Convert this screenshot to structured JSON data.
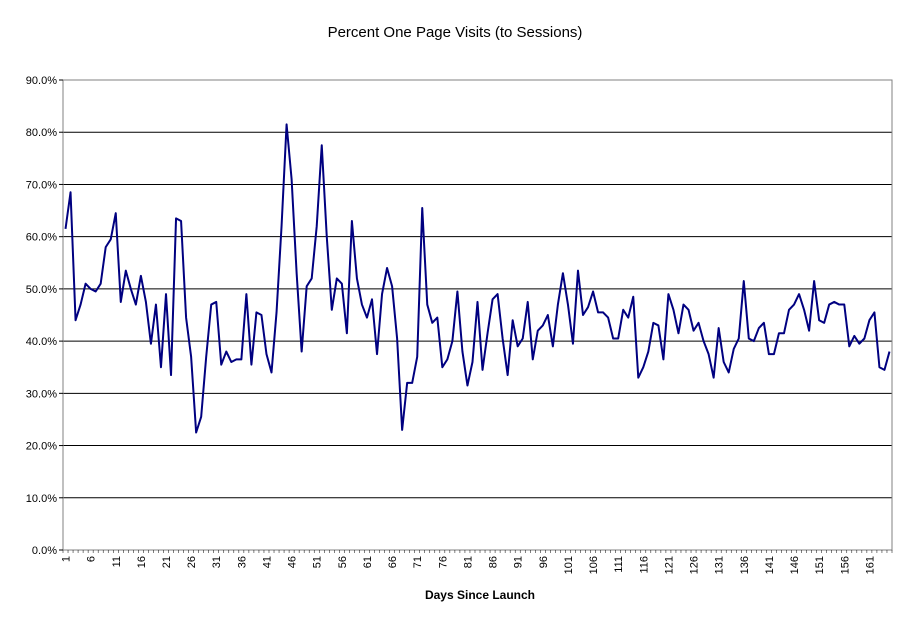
{
  "chart_data": {
    "type": "line",
    "title": "Percent One Page Visits (to Sessions)",
    "xlabel": "Days Since Launch",
    "ylabel": "",
    "ylim": [
      0,
      90
    ],
    "y_ticks": [
      "0.0%",
      "10.0%",
      "20.0%",
      "30.0%",
      "40.0%",
      "50.0%",
      "60.0%",
      "70.0%",
      "80.0%",
      "90.0%"
    ],
    "x_tick_labels": [
      "1",
      "6",
      "11",
      "16",
      "21",
      "26",
      "31",
      "36",
      "41",
      "46",
      "51",
      "56",
      "61",
      "66",
      "71",
      "76",
      "81",
      "86",
      "91",
      "96",
      "101",
      "106",
      "111",
      "116",
      "121",
      "126",
      "131",
      "136",
      "141",
      "146",
      "151",
      "156",
      "161"
    ],
    "x_start": 1,
    "grid": true,
    "legend": "none",
    "series": [
      {
        "name": "Percent One Page Visits",
        "color": "#000080",
        "values": [
          61.5,
          68.5,
          44.0,
          47.0,
          51.0,
          50.0,
          49.5,
          51.0,
          58.0,
          59.5,
          64.5,
          47.5,
          53.5,
          50.0,
          47.0,
          52.5,
          47.5,
          39.5,
          47.0,
          35.0,
          49.0,
          33.5,
          63.5,
          63.0,
          44.5,
          37.0,
          22.5,
          25.5,
          37.0,
          47.0,
          47.5,
          35.5,
          38.0,
          36.0,
          36.5,
          36.5,
          49.0,
          35.5,
          45.5,
          45.0,
          37.5,
          34.0,
          45.5,
          62.0,
          81.5,
          71.0,
          53.0,
          38.0,
          50.5,
          52.0,
          62.0,
          77.5,
          60.0,
          46.0,
          52.0,
          51.0,
          41.5,
          63.0,
          52.0,
          47.0,
          44.5,
          48.0,
          37.5,
          49.0,
          54.0,
          50.5,
          40.5,
          23.0,
          32.0,
          32.0,
          37.0,
          65.5,
          47.0,
          43.5,
          44.5,
          35.0,
          36.5,
          40.0,
          49.5,
          38.0,
          31.5,
          36.0,
          47.5,
          34.5,
          41.5,
          48.0,
          49.0,
          40.5,
          33.5,
          44.0,
          39.0,
          40.5,
          47.5,
          36.5,
          42.0,
          43.0,
          45.0,
          39.0,
          47.0,
          53.0,
          47.0,
          39.5,
          53.5,
          45.0,
          46.5,
          49.5,
          45.5,
          45.5,
          44.5,
          40.5,
          40.5,
          46.0,
          44.5,
          48.5,
          33.0,
          35.0,
          38.0,
          43.5,
          43.0,
          36.5,
          49.0,
          46.0,
          41.5,
          47.0,
          46.0,
          42.0,
          43.5,
          40.0,
          37.5,
          33.0,
          42.5,
          36.0,
          34.0,
          38.5,
          40.5,
          51.5,
          40.5,
          40.0,
          42.5,
          43.5,
          37.5,
          37.5,
          41.5,
          41.5,
          46.0,
          47.0,
          49.0,
          46.0,
          42.0,
          51.5,
          44.0,
          43.5,
          47.0,
          47.5,
          47.0,
          47.0,
          39.0,
          41.0,
          39.5,
          40.5,
          44.0,
          45.5,
          35.0,
          34.5,
          38.0
        ]
      }
    ]
  }
}
